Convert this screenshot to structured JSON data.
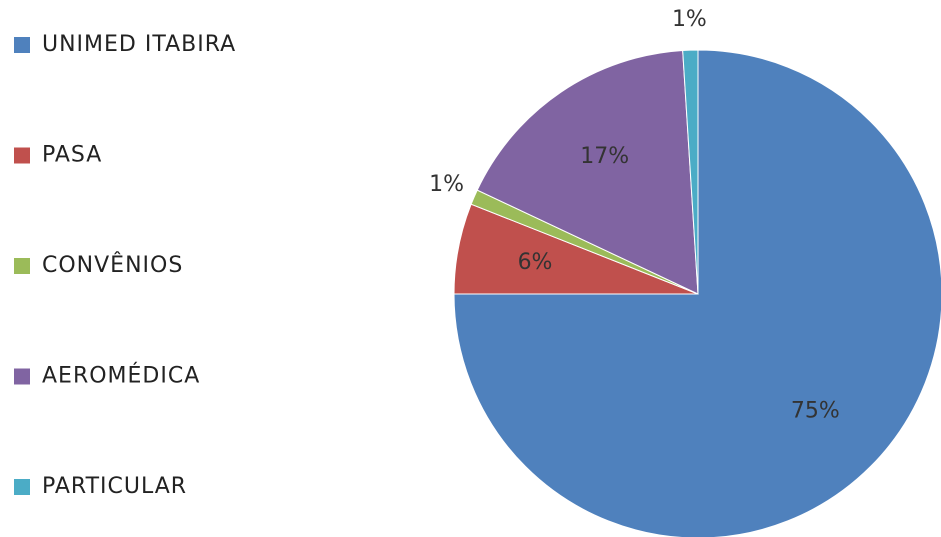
{
  "chart_data": {
    "type": "pie",
    "categories": [
      "UNIMED ITABIRA",
      "PASA",
      "CONVÊNIOS",
      "AEROMÉDICA",
      "PARTICULAR"
    ],
    "values": [
      75,
      6,
      1,
      17,
      1
    ],
    "value_labels": [
      "75%",
      "6%",
      "1%",
      "17%",
      "1%"
    ],
    "colors": [
      "#4f81bd",
      "#c0504d",
      "#9bbb59",
      "#8064a2",
      "#4bacc6"
    ],
    "legend": "left"
  }
}
